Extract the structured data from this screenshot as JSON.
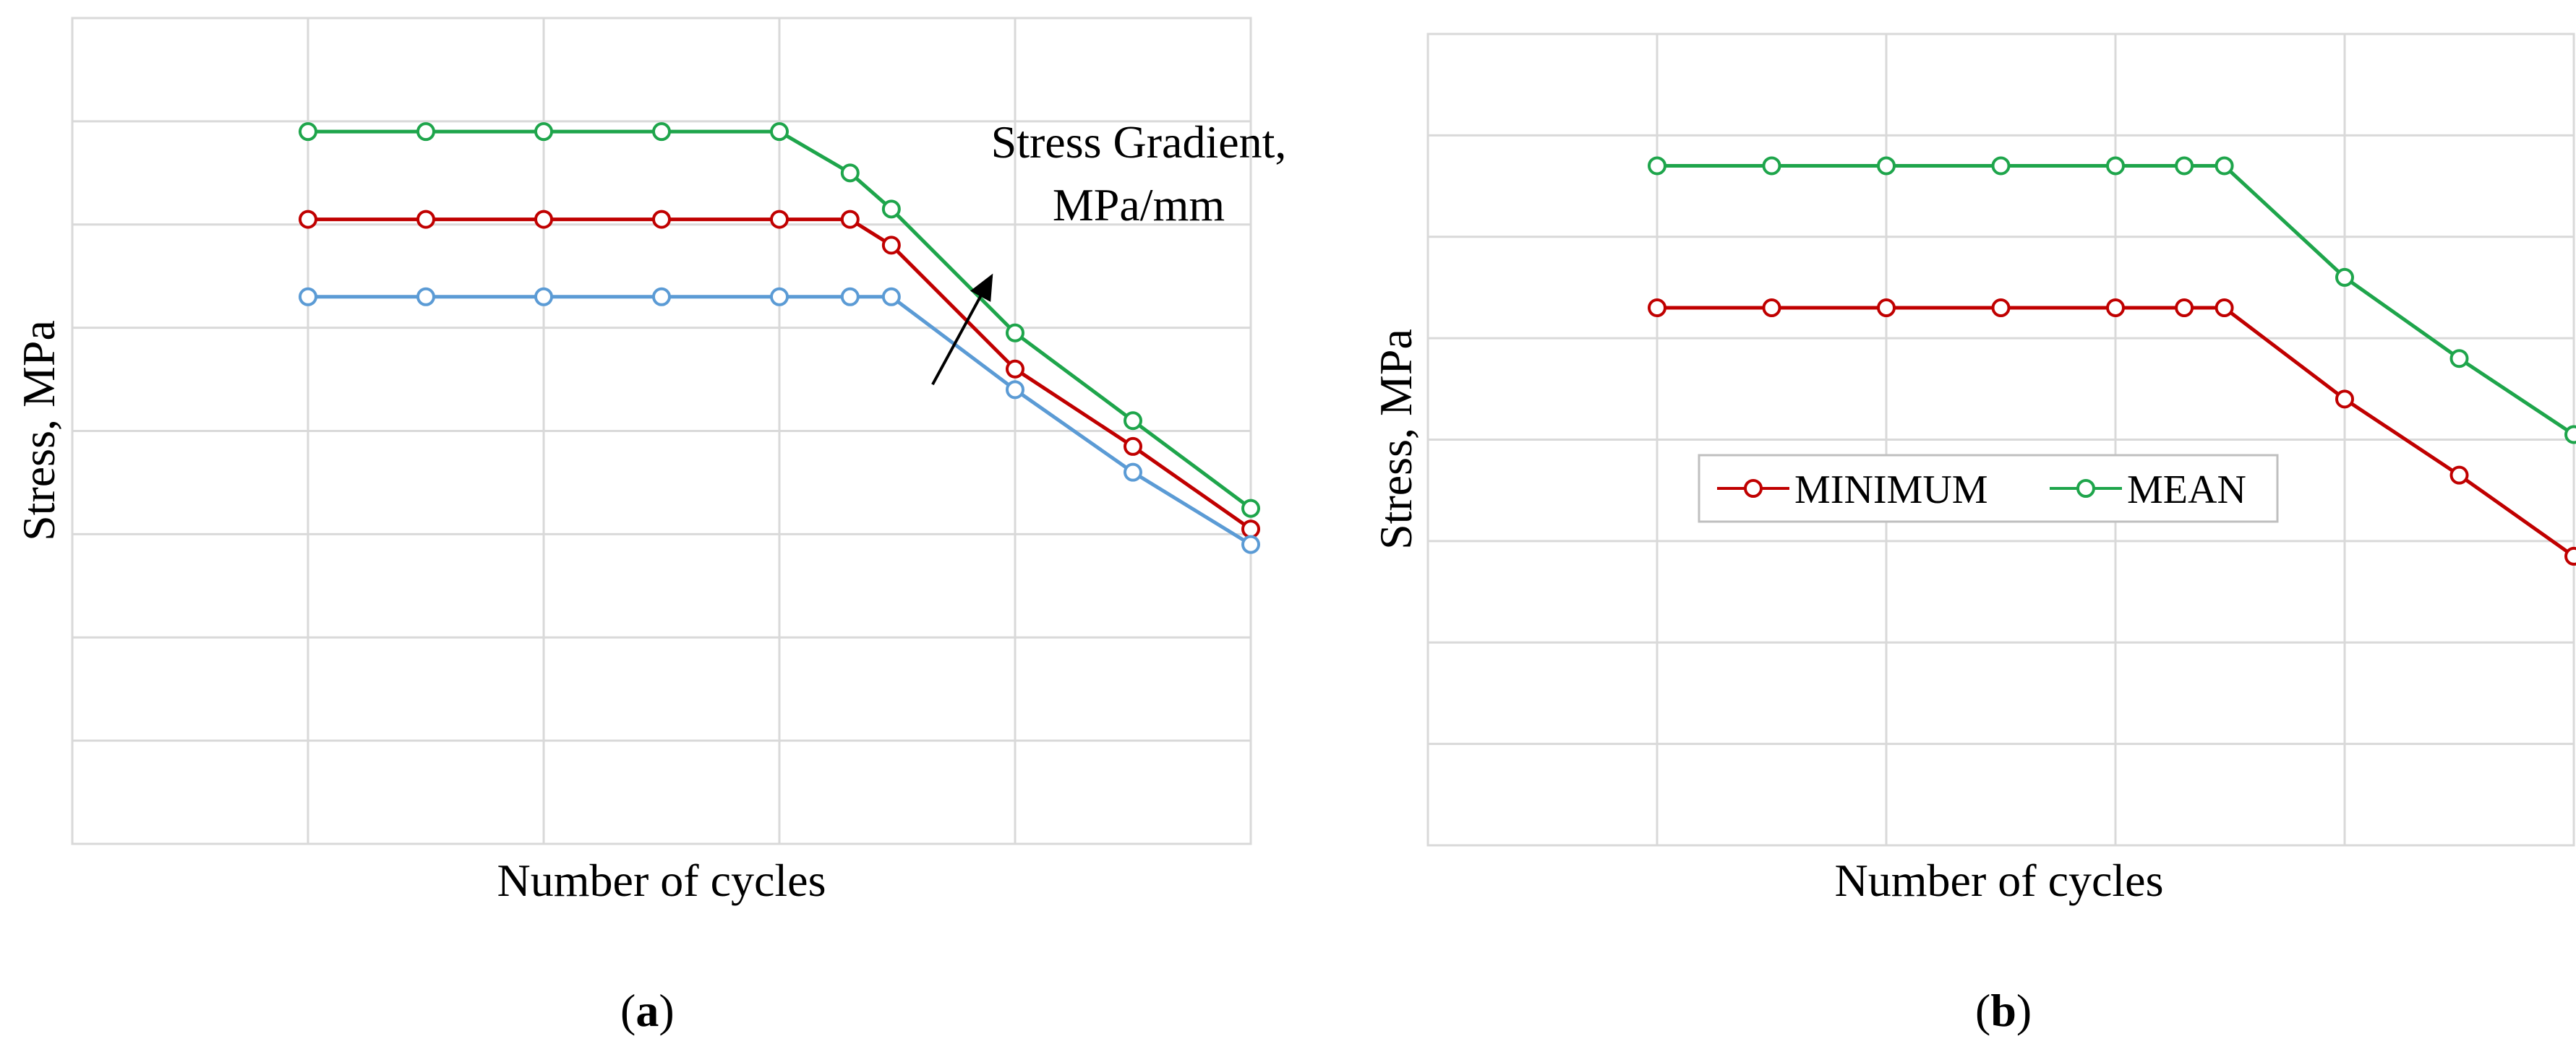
{
  "chart_data": [
    {
      "type": "line",
      "panel_label": "a",
      "xlabel": "Number of cycles",
      "ylabel": "Stress, MPa",
      "xlim": [
        0,
        10
      ],
      "ylim": [
        0,
        8
      ],
      "grid": true,
      "x_gridlines": [
        2,
        4,
        6,
        8,
        10
      ],
      "y_gridlines": [
        1,
        2,
        3,
        4,
        5,
        6,
        7,
        8
      ],
      "annotation": {
        "lines": [
          "Stress Gradient,",
          "MPa/mm"
        ],
        "arrow_from": [
          7.3,
          4.45
        ],
        "arrow_to": [
          7.8,
          5.5
        ]
      },
      "series": [
        {
          "name": "green",
          "color": "#1ea54b",
          "x": [
            2,
            3,
            4,
            5,
            6,
            6.6,
            6.95,
            8,
            9,
            10
          ],
          "y": [
            6.9,
            6.9,
            6.9,
            6.9,
            6.9,
            6.5,
            6.15,
            4.95,
            4.1,
            3.25
          ]
        },
        {
          "name": "red",
          "color": "#c00000",
          "x": [
            2,
            3,
            4,
            5,
            6,
            6.6,
            6.95,
            8,
            9,
            10
          ],
          "y": [
            6.05,
            6.05,
            6.05,
            6.05,
            6.05,
            6.05,
            5.8,
            4.6,
            3.85,
            3.05
          ]
        },
        {
          "name": "blue",
          "color": "#5b9bd5",
          "x": [
            2,
            3,
            4,
            5,
            6,
            6.6,
            6.95,
            8,
            9,
            10
          ],
          "y": [
            5.3,
            5.3,
            5.3,
            5.3,
            5.3,
            5.3,
            5.3,
            4.4,
            3.6,
            2.9
          ]
        }
      ]
    },
    {
      "type": "line",
      "panel_label": "b",
      "xlabel": "Number of cycles",
      "ylabel": "Stress, MPa",
      "xlim": [
        0,
        10
      ],
      "ylim": [
        0,
        8
      ],
      "grid": true,
      "x_gridlines": [
        2,
        4,
        6,
        8,
        10
      ],
      "y_gridlines": [
        1,
        2,
        3,
        4,
        5,
        6,
        7,
        8
      ],
      "legend": {
        "position": "center-left",
        "entries": [
          "MINIMUM",
          "MEAN"
        ]
      },
      "series": [
        {
          "name": "MINIMUM",
          "color": "#c00000",
          "x": [
            2,
            3,
            4,
            5,
            6,
            6.6,
            6.95,
            8,
            9,
            10
          ],
          "y": [
            5.3,
            5.3,
            5.3,
            5.3,
            5.3,
            5.3,
            5.3,
            4.4,
            3.65,
            2.85
          ]
        },
        {
          "name": "MEAN",
          "color": "#1ea54b",
          "x": [
            2,
            3,
            4,
            5,
            6,
            6.6,
            6.95,
            8,
            9,
            10
          ],
          "y": [
            6.7,
            6.7,
            6.7,
            6.7,
            6.7,
            6.7,
            6.7,
            5.6,
            4.8,
            4.05
          ]
        }
      ]
    }
  ]
}
